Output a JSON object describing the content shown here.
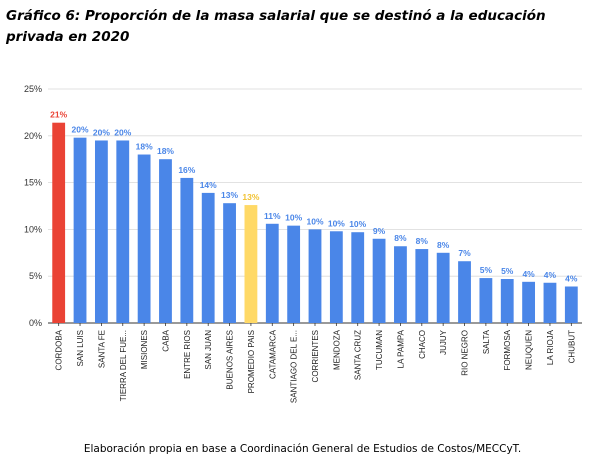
{
  "title": "Gráfico 6: Proporción de la masa salarial que se destinó a la educación privada en 2020",
  "source": "Elaboración propia en base a Coordinación General de Estudios de Costos/MECCyT.",
  "colors": {
    "default": "#4a86e8",
    "highlight_max": "#ea4335",
    "highlight_avg": "#ffd966",
    "label_default": "#4a86e8",
    "label_max": "#ea4335",
    "label_avg": "#f1c232"
  },
  "chart_data": {
    "type": "bar",
    "title": "",
    "xlabel": "",
    "ylabel": "",
    "ylim": [
      0,
      25
    ],
    "yticks": [
      "0%",
      "5%",
      "10%",
      "15%",
      "20%",
      "25%"
    ],
    "grid": true,
    "categories": [
      "CORDOBA",
      "SAN LUIS",
      "SANTA FE",
      "TIERRA DEL FUE...",
      "MISIONES",
      "CABA",
      "ENTRE RIOS",
      "SAN JUAN",
      "BUENOS AIRES",
      "PROMEDIO PAIS",
      "CATAMARCA",
      "SANTIAGO DEL E...",
      "CORRIENTES",
      "MENDOZA",
      "SANTA CRUZ",
      "TUCUMAN",
      "LA PAMPA",
      "CHACO",
      "JUJUY",
      "RIO NEGRO",
      "SALTA",
      "FORMOSA",
      "NEUQUEN",
      "LA RIOJA",
      "CHUBUT"
    ],
    "values": [
      21.4,
      19.8,
      19.5,
      19.5,
      18.0,
      17.5,
      15.5,
      13.9,
      12.8,
      12.6,
      10.6,
      10.4,
      10.0,
      9.8,
      9.7,
      9.0,
      8.2,
      7.9,
      7.5,
      6.6,
      4.8,
      4.7,
      4.4,
      4.3,
      3.9
    ],
    "labels": [
      "21%",
      "20%",
      "20%",
      "20%",
      "18%",
      "18%",
      "16%",
      "14%",
      "13%",
      "13%",
      "11%",
      "10%",
      "10%",
      "10%",
      "10%",
      "9%",
      "8%",
      "8%",
      "8%",
      "7%",
      "5%",
      "5%",
      "4%",
      "4%",
      "4%"
    ],
    "highlight": {
      "max": "CORDOBA",
      "average": "PROMEDIO PAIS"
    }
  }
}
